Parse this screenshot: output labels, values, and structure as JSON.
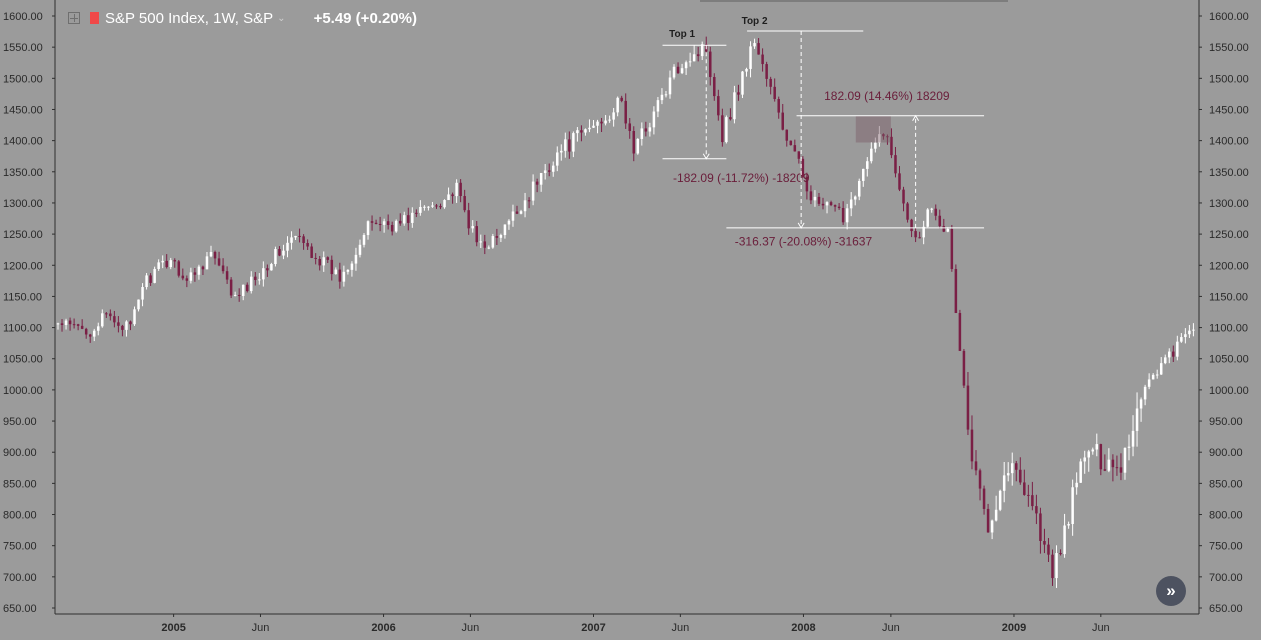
{
  "header": {
    "title": "S&P 500 Index, 1W, S&P",
    "change": "+5.49 (+0.20%)",
    "icons": [
      "plus-box-icon",
      "red-flag-icon",
      "chevron-down-icon"
    ],
    "flag_color": "#f04848"
  },
  "nav_button": {
    "icon": "double-chevron-right-icon",
    "glyph": "»"
  },
  "colors": {
    "background": "#9b9b9b",
    "up_candle": "#ffffff",
    "down_candle": "#7a1f45",
    "annotation_text": "#6a1d3a"
  },
  "chart_data": {
    "type": "candlestick",
    "title": "",
    "ylim": [
      650,
      1600
    ],
    "xlim": [
      "2004-06-14",
      "2009-11-10"
    ],
    "y_ticks": [
      "1600.00",
      "1550.00",
      "1500.00",
      "1450.00",
      "1400.00",
      "1350.00",
      "1300.00",
      "1250.00",
      "1200.00",
      "1150.00",
      "1100.00",
      "1050.00",
      "1000.00",
      "950.00",
      "900.00",
      "850.00",
      "800.00",
      "750.00",
      "700.00",
      "650.00"
    ],
    "x_ticks": [
      {
        "label": "2005",
        "date": "2005-01-01",
        "bold": true
      },
      {
        "label": "Jun",
        "date": "2005-06-01",
        "bold": false
      },
      {
        "label": "2006",
        "date": "2006-01-01",
        "bold": true
      },
      {
        "label": "Jun",
        "date": "2006-06-01",
        "bold": false
      },
      {
        "label": "2007",
        "date": "2007-01-01",
        "bold": true
      },
      {
        "label": "Jun",
        "date": "2007-06-01",
        "bold": false
      },
      {
        "label": "2008",
        "date": "2008-01-01",
        "bold": true
      },
      {
        "label": "Jun",
        "date": "2008-06-01",
        "bold": false
      },
      {
        "label": "2009",
        "date": "2009-01-01",
        "bold": true
      },
      {
        "label": "Jun",
        "date": "2009-06-01",
        "bold": false
      }
    ],
    "weekly_closes": [
      {
        "date": "2004-06-14",
        "close": 1105
      },
      {
        "date": "2004-08-09",
        "close": 1095
      },
      {
        "date": "2004-09-06",
        "close": 1118
      },
      {
        "date": "2004-10-18",
        "close": 1098
      },
      {
        "date": "2004-11-08",
        "close": 1170
      },
      {
        "date": "2004-12-27",
        "close": 1212
      },
      {
        "date": "2005-01-24",
        "close": 1175
      },
      {
        "date": "2005-03-07",
        "close": 1220
      },
      {
        "date": "2005-04-18",
        "close": 1145
      },
      {
        "date": "2005-06-20",
        "close": 1210
      },
      {
        "date": "2005-08-01",
        "close": 1245
      },
      {
        "date": "2005-10-17",
        "close": 1180
      },
      {
        "date": "2005-12-12",
        "close": 1270
      },
      {
        "date": "2006-01-23",
        "close": 1265
      },
      {
        "date": "2006-05-08",
        "close": 1320
      },
      {
        "date": "2006-06-12",
        "close": 1235
      },
      {
        "date": "2006-07-17",
        "close": 1240
      },
      {
        "date": "2006-10-30",
        "close": 1380
      },
      {
        "date": "2006-12-25",
        "close": 1420
      },
      {
        "date": "2007-02-19",
        "close": 1460
      },
      {
        "date": "2007-03-12",
        "close": 1385
      },
      {
        "date": "2007-06-04",
        "close": 1530
      },
      {
        "date": "2007-07-16",
        "close": 1550
      },
      {
        "date": "2007-08-13",
        "close": 1410
      },
      {
        "date": "2007-10-08",
        "close": 1562
      },
      {
        "date": "2007-11-26",
        "close": 1420
      },
      {
        "date": "2008-01-21",
        "close": 1300
      },
      {
        "date": "2008-03-10",
        "close": 1280
      },
      {
        "date": "2008-05-19",
        "close": 1420
      },
      {
        "date": "2008-07-14",
        "close": 1240
      },
      {
        "date": "2008-08-11",
        "close": 1300
      },
      {
        "date": "2008-09-08",
        "close": 1250
      },
      {
        "date": "2008-10-20",
        "close": 880
      },
      {
        "date": "2008-11-17",
        "close": 790
      },
      {
        "date": "2008-12-22",
        "close": 880
      },
      {
        "date": "2009-01-26",
        "close": 840
      },
      {
        "date": "2009-03-09",
        "close": 700
      },
      {
        "date": "2009-05-04",
        "close": 900
      },
      {
        "date": "2009-07-06",
        "close": 880
      },
      {
        "date": "2009-08-17",
        "close": 1010
      },
      {
        "date": "2009-10-12",
        "close": 1070
      },
      {
        "date": "2009-11-10",
        "close": 1100
      }
    ],
    "annotations": [
      {
        "type": "text",
        "text": "Top 1",
        "date": "2007-06-04",
        "value": 1566
      },
      {
        "type": "text",
        "text": "Top 2",
        "date": "2007-10-08",
        "value": 1587
      },
      {
        "type": "hline",
        "from": "2007-05-01",
        "to": "2007-08-20",
        "value": 1553
      },
      {
        "type": "hline",
        "from": "2007-05-01",
        "to": "2007-08-20",
        "value": 1371
      },
      {
        "type": "hline",
        "from": "2007-09-25",
        "to": "2008-04-14",
        "value": 1576
      },
      {
        "type": "hline",
        "from": "2007-12-20",
        "to": "2008-11-10",
        "value": 1440
      },
      {
        "type": "hline",
        "from": "2007-08-20",
        "to": "2008-11-10",
        "value": 1260
      },
      {
        "type": "measure",
        "date": "2007-07-16",
        "from": 1553,
        "to": 1371,
        "label": "-182.09 (-11.72%) -18209",
        "label_date": "2007-09-15",
        "label_value": 1334
      },
      {
        "type": "measure",
        "date": "2007-12-28",
        "from": 1576,
        "to": 1260,
        "label": "-316.37 (-20.08%) -31637",
        "label_date": "2008-01-01",
        "label_value": 1232
      },
      {
        "type": "measure",
        "date": "2008-07-14",
        "from": 1260,
        "to": 1440,
        "label": "182.09 (14.46%) 18209",
        "label_date": "2008-05-25",
        "label_value": 1465
      },
      {
        "type": "zone",
        "from_date": "2008-04-01",
        "to_date": "2008-06-01",
        "from": 1397,
        "to": 1440
      }
    ]
  }
}
